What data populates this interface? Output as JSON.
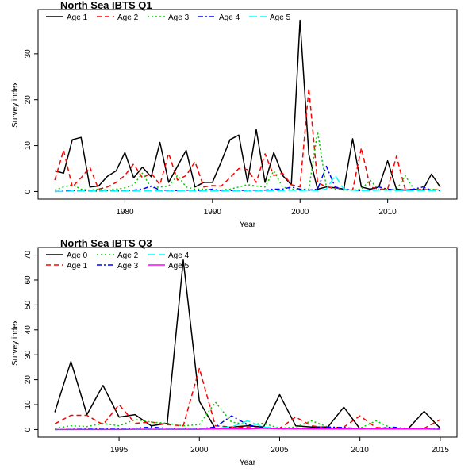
{
  "chart_data": [
    {
      "type": "line",
      "title": "North Sea IBTS Q1",
      "xlabel": "Year",
      "ylabel": "Survey index",
      "xlim": [
        1972,
        2016
      ],
      "ylim": [
        0,
        38
      ],
      "xticks": [
        1980,
        1990,
        2000,
        2010
      ],
      "yticks": [
        0,
        10,
        20,
        30
      ],
      "legend_position": "top",
      "series": [
        {
          "name": "Age 1",
          "color": "#000000",
          "dash": "solid",
          "x": [
            1972,
            1973,
            1974,
            1975,
            1976,
            1977,
            1978,
            1979,
            1980,
            1981,
            1982,
            1983,
            1984,
            1985,
            1986,
            1987,
            1988,
            1989,
            1990,
            1991,
            1992,
            1993,
            1994,
            1995,
            1996,
            1997,
            1998,
            1999,
            2000,
            2001,
            2002,
            2003,
            2004,
            2005,
            2006,
            2007,
            2008,
            2009,
            2010,
            2011,
            2012,
            2013,
            2014,
            2015,
            2016
          ],
          "y": [
            4.5,
            4.0,
            11.3,
            11.8,
            1.0,
            1.2,
            3.3,
            4.5,
            8.5,
            3.0,
            5.3,
            3.2,
            10.7,
            2.0,
            5.5,
            9.0,
            1.0,
            2.0,
            2.0,
            6.5,
            11.3,
            12.3,
            2.0,
            13.5,
            2.0,
            8.5,
            3.5,
            1.5,
            37.3,
            8.0,
            0.5,
            1.0,
            0.8,
            0.5,
            11.5,
            1.0,
            0.5,
            1.0,
            6.7,
            0.5,
            0.3,
            0.5,
            0.3,
            3.8,
            1.0
          ]
        },
        {
          "name": "Age 2",
          "color": "#ff0000",
          "dash": "dashed",
          "x": [
            1972,
            1973,
            1974,
            1975,
            1976,
            1977,
            1978,
            1979,
            1980,
            1981,
            1982,
            1983,
            1984,
            1985,
            1986,
            1987,
            1988,
            1989,
            1990,
            1991,
            1992,
            1993,
            1994,
            1995,
            1996,
            1997,
            1998,
            1999,
            2000,
            2001,
            2002,
            2003,
            2004,
            2005,
            2006,
            2007,
            2008,
            2009,
            2010,
            2011,
            2012,
            2013,
            2014,
            2015,
            2016
          ],
          "y": [
            2.5,
            9.0,
            1.0,
            3.0,
            5.3,
            0.5,
            1.0,
            2.0,
            3.5,
            6.0,
            3.0,
            4.0,
            1.5,
            8.3,
            2.5,
            3.5,
            6.5,
            1.0,
            1.3,
            1.2,
            3.0,
            5.0,
            4.8,
            2.0,
            8.2,
            3.5,
            4.0,
            1.5,
            1.0,
            22.5,
            2.0,
            1.0,
            0.8,
            0.5,
            0.3,
            9.5,
            1.0,
            0.5,
            0.5,
            7.7,
            0.5,
            0.3,
            0.5,
            0.3,
            0.5
          ]
        },
        {
          "name": "Age 3",
          "color": "#00cc00",
          "dash": "dotted",
          "x": [
            1972,
            1973,
            1974,
            1975,
            1976,
            1977,
            1978,
            1979,
            1980,
            1981,
            1982,
            1983,
            1984,
            1985,
            1986,
            1987,
            1988,
            1989,
            1990,
            1991,
            1992,
            1993,
            1994,
            1995,
            1996,
            1997,
            1998,
            1999,
            2000,
            2001,
            2002,
            2003,
            2004,
            2005,
            2006,
            2007,
            2008,
            2009,
            2010,
            2011,
            2012,
            2013,
            2014,
            2015,
            2016
          ],
          "y": [
            0.3,
            1.0,
            1.5,
            0.5,
            0.3,
            0.5,
            0.3,
            0.5,
            0.8,
            1.5,
            4.0,
            0.8,
            1.0,
            1.2,
            3.5,
            1.0,
            0.5,
            0.5,
            0.3,
            0.3,
            0.5,
            1.0,
            1.5,
            1.2,
            1.0,
            4.5,
            1.0,
            0.5,
            0.5,
            0.5,
            13.0,
            1.0,
            0.5,
            0.3,
            0.3,
            0.5,
            2.5,
            0.3,
            0.5,
            0.3,
            3.5,
            0.5,
            0.3,
            0.5,
            0.3
          ]
        },
        {
          "name": "Age 4",
          "color": "#0000ff",
          "dash": "dashdot",
          "x": [
            1972,
            1973,
            1974,
            1975,
            1976,
            1977,
            1978,
            1979,
            1980,
            1981,
            1982,
            1983,
            1984,
            1985,
            1986,
            1987,
            1988,
            1989,
            1990,
            1991,
            1992,
            1993,
            1994,
            1995,
            1996,
            1997,
            1998,
            1999,
            2000,
            2001,
            2002,
            2003,
            2004,
            2005,
            2006,
            2007,
            2008,
            2009,
            2010,
            2011,
            2012,
            2013,
            2014,
            2015,
            2016
          ],
          "y": [
            0.0,
            0.1,
            0.2,
            0.3,
            0.1,
            0.1,
            0.2,
            0.1,
            0.2,
            0.3,
            0.5,
            1.2,
            0.3,
            0.3,
            0.2,
            0.3,
            0.2,
            0.2,
            0.5,
            0.2,
            0.2,
            0.2,
            0.3,
            0.3,
            0.3,
            0.5,
            0.5,
            1.0,
            0.5,
            0.3,
            0.5,
            5.5,
            1.0,
            0.5,
            0.3,
            0.2,
            0.3,
            1.0,
            0.5,
            0.3,
            0.3,
            0.5,
            1.0,
            0.3,
            0.2
          ]
        },
        {
          "name": "Age 5",
          "color": "#00ffff",
          "dash": "longdash",
          "x": [
            1972,
            1973,
            1974,
            1975,
            1976,
            1977,
            1978,
            1979,
            1980,
            1981,
            1982,
            1983,
            1984,
            1985,
            1986,
            1987,
            1988,
            1989,
            1990,
            1991,
            1992,
            1993,
            1994,
            1995,
            1996,
            1997,
            1998,
            1999,
            2000,
            2001,
            2002,
            2003,
            2004,
            2005,
            2006,
            2007,
            2008,
            2009,
            2010,
            2011,
            2012,
            2013,
            2014,
            2015,
            2016
          ],
          "y": [
            0.0,
            0.0,
            0.1,
            0.1,
            0.1,
            0.1,
            0.1,
            0.1,
            0.1,
            0.1,
            0.1,
            0.2,
            0.1,
            0.1,
            0.1,
            0.2,
            0.1,
            0.1,
            0.1,
            0.1,
            0.1,
            0.1,
            0.1,
            0.1,
            0.1,
            0.2,
            0.2,
            0.3,
            0.2,
            0.3,
            0.2,
            0.5,
            3.5,
            0.5,
            0.3,
            0.2,
            0.2,
            0.3,
            0.3,
            0.2,
            0.2,
            0.2,
            0.2,
            0.2,
            0.1
          ]
        }
      ]
    },
    {
      "type": "line",
      "title": "North Sea IBTS Q3",
      "xlabel": "Year",
      "ylabel": "Survey index",
      "xlim": [
        1991,
        2015
      ],
      "ylim": [
        0,
        70
      ],
      "xticks": [
        1995,
        2000,
        2005,
        2010,
        2015
      ],
      "yticks": [
        0,
        10,
        20,
        30,
        40,
        50,
        60,
        70
      ],
      "legend_position": "top-left",
      "series": [
        {
          "name": "Age 0",
          "color": "#000000",
          "dash": "solid",
          "x": [
            1991,
            1992,
            1993,
            1994,
            1995,
            1996,
            1997,
            1998,
            1999,
            2000,
            2001,
            2002,
            2003,
            2004,
            2005,
            2006,
            2007,
            2008,
            2009,
            2010,
            2011,
            2012,
            2013,
            2014,
            2015
          ],
          "y": [
            7.0,
            27.3,
            6.0,
            17.7,
            5.0,
            6.0,
            1.5,
            2.5,
            68.0,
            11.3,
            0.3,
            1.0,
            1.5,
            1.0,
            14.0,
            1.5,
            1.0,
            1.0,
            9.0,
            0.3,
            0.5,
            0.3,
            0.3,
            7.3,
            0.5
          ]
        },
        {
          "name": "Age 1",
          "color": "#ff0000",
          "dash": "dashed",
          "x": [
            1991,
            1992,
            1993,
            1994,
            1995,
            1996,
            1997,
            1998,
            1999,
            2000,
            2001,
            2002,
            2003,
            2004,
            2005,
            2006,
            2007,
            2008,
            2009,
            2010,
            2011,
            2012,
            2013,
            2014,
            2015
          ],
          "y": [
            2.3,
            5.7,
            5.7,
            2.0,
            10.0,
            2.5,
            3.0,
            2.0,
            1.5,
            24.5,
            1.5,
            1.0,
            0.8,
            0.5,
            0.5,
            5.0,
            1.5,
            0.5,
            1.0,
            5.5,
            0.8,
            0.5,
            0.3,
            0.5,
            4.0
          ]
        },
        {
          "name": "Age 2",
          "color": "#00cc00",
          "dash": "dotted",
          "x": [
            1991,
            1992,
            1993,
            1994,
            1995,
            1996,
            1997,
            1998,
            1999,
            2000,
            2001,
            2002,
            2003,
            2004,
            2005,
            2006,
            2007,
            2008,
            2009,
            2010,
            2011,
            2012,
            2013,
            2014,
            2015
          ],
          "y": [
            0.5,
            1.5,
            1.2,
            2.5,
            1.5,
            4.0,
            3.0,
            2.5,
            1.5,
            2.0,
            11.0,
            3.0,
            2.0,
            2.5,
            0.5,
            1.0,
            3.5,
            1.0,
            0.5,
            0.5,
            3.5,
            0.5,
            0.3,
            0.3,
            0.5
          ]
        },
        {
          "name": "Age 3",
          "color": "#0000ff",
          "dash": "dashdot",
          "x": [
            1991,
            1992,
            1993,
            1994,
            1995,
            1996,
            1997,
            1998,
            1999,
            2000,
            2001,
            2002,
            2003,
            2004,
            2005,
            2006,
            2007,
            2008,
            2009,
            2010,
            2011,
            2012,
            2013,
            2014,
            2015
          ],
          "y": [
            0.0,
            0.1,
            0.2,
            0.3,
            0.5,
            0.5,
            1.0,
            0.5,
            0.5,
            0.3,
            1.0,
            5.5,
            2.0,
            0.5,
            0.3,
            0.3,
            0.5,
            1.0,
            0.8,
            0.3,
            0.3,
            1.0,
            0.3,
            0.2,
            0.2
          ]
        },
        {
          "name": "Age 4",
          "color": "#00ffff",
          "dash": "longdash",
          "x": [
            1991,
            1992,
            1993,
            1994,
            1995,
            1996,
            1997,
            1998,
            1999,
            2000,
            2001,
            2002,
            2003,
            2004,
            2005,
            2006,
            2007,
            2008,
            2009,
            2010,
            2011,
            2012,
            2013,
            2014,
            2015
          ],
          "y": [
            0.0,
            0.0,
            0.1,
            0.1,
            0.1,
            0.2,
            0.2,
            0.3,
            0.3,
            0.5,
            0.5,
            1.0,
            3.5,
            1.0,
            0.5,
            0.3,
            0.3,
            0.3,
            0.5,
            0.5,
            0.3,
            0.2,
            0.2,
            0.2,
            0.1
          ]
        },
        {
          "name": "Age 5",
          "color": "#ff00ff",
          "dash": "solid",
          "x": [
            1991,
            1992,
            1993,
            1994,
            1995,
            1996,
            1997,
            1998,
            1999,
            2000,
            2001,
            2002,
            2003,
            2004,
            2005,
            2006,
            2007,
            2008,
            2009,
            2010,
            2011,
            2012,
            2013,
            2014,
            2015
          ],
          "y": [
            0.0,
            0.0,
            0.0,
            0.0,
            0.0,
            0.1,
            0.1,
            0.1,
            0.1,
            0.1,
            0.2,
            0.3,
            0.2,
            0.5,
            0.3,
            0.3,
            0.2,
            0.2,
            0.2,
            0.3,
            0.2,
            0.2,
            0.2,
            0.2,
            0.1
          ]
        }
      ]
    }
  ]
}
